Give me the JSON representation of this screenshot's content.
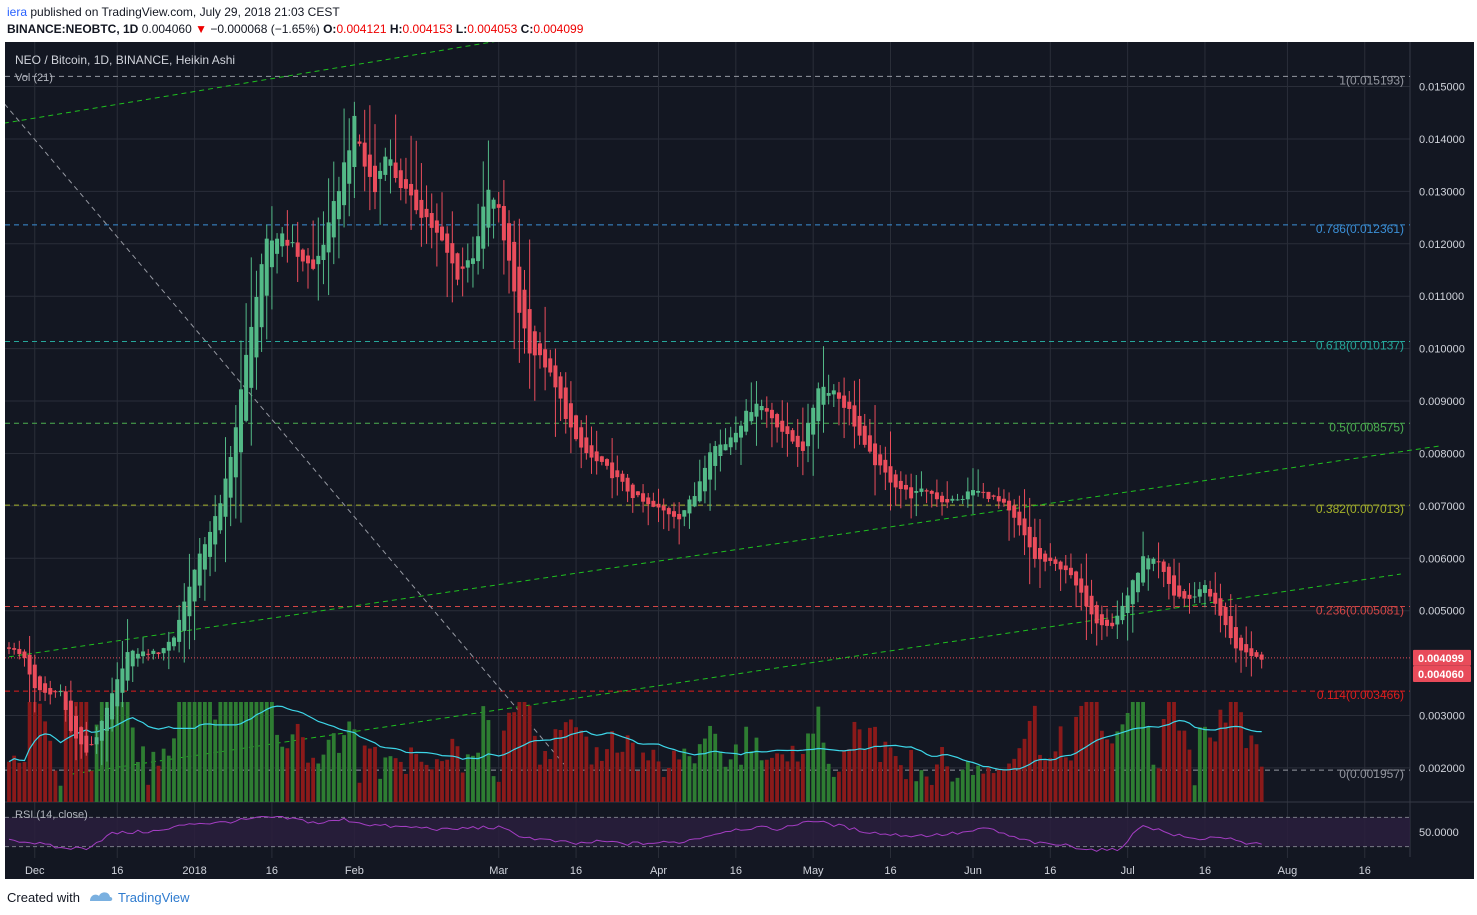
{
  "header": {
    "user": "iera",
    "published": " published on TradingView.com, July 29, 2018 21:03 CEST",
    "symbol": "BINANCE:NEOBTC, 1D",
    "price": "0.004060",
    "change_arrow": "▼",
    "change": "−0.000068 (−1.65%)",
    "o_label": "O:",
    "o_val": "0.004121",
    "h_label": "H:",
    "h_val": "0.004153",
    "l_label": "L:",
    "l_val": "0.004053",
    "c_label": "C:",
    "c_val": "0.004099"
  },
  "legend": {
    "title": "NEO / Bitcoin, 1D, BINANCE, Heikin Ashi",
    "vol": "Vol (21)",
    "rsi": "RSI (14, close)"
  },
  "colors": {
    "background": "#131722",
    "up": "#53b987",
    "down": "#eb4d5c",
    "vol_up": "#2e7d32",
    "vol_down": "#8b1a1a",
    "vol_ma": "#3dd6e8",
    "rsi": "#a33dc2",
    "trendline": "#1fbf1f"
  },
  "footer": {
    "created": "Created with",
    "brand": "TradingView"
  },
  "chart_data": {
    "type": "candlestick",
    "y_range": [
      0.00135,
      0.01585
    ],
    "y_ticks": [
      "0.015000",
      "0.014000",
      "0.013000",
      "0.012000",
      "0.011000",
      "0.010000",
      "0.009000",
      "0.008000",
      "0.007000",
      "0.006000",
      "0.005000",
      "0.003000",
      "0.002000"
    ],
    "x_ticks": [
      {
        "label": "Dec",
        "day": 5
      },
      {
        "label": "16",
        "day": 21
      },
      {
        "label": "2018",
        "day": 36
      },
      {
        "label": "16",
        "day": 51
      },
      {
        "label": "Feb",
        "day": 67
      },
      {
        "label": "Mar",
        "day": 95
      },
      {
        "label": "16",
        "day": 110
      },
      {
        "label": "Apr",
        "day": 126
      },
      {
        "label": "16",
        "day": 141
      },
      {
        "label": "May",
        "day": 156
      },
      {
        "label": "16",
        "day": 171
      },
      {
        "label": "Jun",
        "day": 187
      },
      {
        "label": "16",
        "day": 202
      },
      {
        "label": "Jul",
        "day": 217
      },
      {
        "label": "16",
        "day": 232
      },
      {
        "label": "Aug",
        "day": 248
      },
      {
        "label": "16",
        "day": 263
      }
    ],
    "fib_levels": [
      {
        "label": "1(0.015193)",
        "value": 0.015193,
        "color": "#9598a1"
      },
      {
        "label": "0.786(0.012361)",
        "value": 0.012361,
        "color": "#3b8fd6"
      },
      {
        "label": "0.618(0.010137)",
        "value": 0.010137,
        "color": "#26a69a"
      },
      {
        "label": "0.5(0.008575)",
        "value": 0.008575,
        "color": "#4caf50"
      },
      {
        "label": "0.382(0.007013)",
        "value": 0.007013,
        "color": "#a5b12a"
      },
      {
        "label": "0.236(0.005081)",
        "value": 0.005081,
        "color": "#d24646"
      },
      {
        "label": "0.114(0.003466)",
        "value": 0.003466,
        "color": "#e01e1e"
      },
      {
        "label": "0(0.001957)",
        "value": 0.001957,
        "color": "#9598a1"
      }
    ],
    "last_close": {
      "label": "0.004099",
      "value": 0.004099
    },
    "last_price": {
      "label": "0.004060",
      "value": 0.00406
    },
    "rsi_level": "50.0000",
    "close_anchors": [
      [
        0,
        0.0043
      ],
      [
        3,
        0.0041
      ],
      [
        5,
        0.0035
      ],
      [
        8,
        0.0034
      ],
      [
        10,
        0.0035
      ],
      [
        12,
        0.0027
      ],
      [
        15,
        0.0023
      ],
      [
        17,
        0.0026
      ],
      [
        20,
        0.0034
      ],
      [
        23,
        0.0042
      ],
      [
        26,
        0.0042
      ],
      [
        29,
        0.0042
      ],
      [
        32,
        0.0045
      ],
      [
        35,
        0.0055
      ],
      [
        38,
        0.0063
      ],
      [
        41,
        0.007
      ],
      [
        44,
        0.0085
      ],
      [
        47,
        0.0105
      ],
      [
        50,
        0.012
      ],
      [
        53,
        0.0122
      ],
      [
        56,
        0.0118
      ],
      [
        59,
        0.0115
      ],
      [
        62,
        0.0123
      ],
      [
        65,
        0.0135
      ],
      [
        67,
        0.0143
      ],
      [
        69,
        0.0135
      ],
      [
        71,
        0.013
      ],
      [
        73,
        0.0138
      ],
      [
        75,
        0.0133
      ],
      [
        78,
        0.0128
      ],
      [
        81,
        0.0125
      ],
      [
        84,
        0.012
      ],
      [
        87,
        0.0114
      ],
      [
        90,
        0.0118
      ],
      [
        93,
        0.013
      ],
      [
        95,
        0.0126
      ],
      [
        98,
        0.0111
      ],
      [
        101,
        0.01
      ],
      [
        104,
        0.0097
      ],
      [
        107,
        0.009
      ],
      [
        110,
        0.0082
      ],
      [
        113,
        0.0079
      ],
      [
        116,
        0.0077
      ],
      [
        119,
        0.0074
      ],
      [
        121,
        0.0072
      ],
      [
        124,
        0.007
      ],
      [
        127,
        0.0069
      ],
      [
        130,
        0.0068
      ],
      [
        133,
        0.0072
      ],
      [
        136,
        0.0081
      ],
      [
        139,
        0.0082
      ],
      [
        142,
        0.0086
      ],
      [
        145,
        0.009
      ],
      [
        148,
        0.0087
      ],
      [
        151,
        0.0083
      ],
      [
        154,
        0.0081
      ],
      [
        157,
        0.0093
      ],
      [
        160,
        0.0092
      ],
      [
        163,
        0.0088
      ],
      [
        166,
        0.0081
      ],
      [
        169,
        0.0077
      ],
      [
        172,
        0.0074
      ],
      [
        175,
        0.0072
      ],
      [
        178,
        0.0073
      ],
      [
        181,
        0.0071
      ],
      [
        184,
        0.0071
      ],
      [
        187,
        0.0073
      ],
      [
        190,
        0.0072
      ],
      [
        193,
        0.007
      ],
      [
        196,
        0.0066
      ],
      [
        199,
        0.006
      ],
      [
        202,
        0.0059
      ],
      [
        205,
        0.0058
      ],
      [
        208,
        0.0053
      ],
      [
        211,
        0.0048
      ],
      [
        214,
        0.0047
      ],
      [
        217,
        0.0053
      ],
      [
        220,
        0.006
      ],
      [
        223,
        0.0059
      ],
      [
        226,
        0.0053
      ],
      [
        229,
        0.0052
      ],
      [
        232,
        0.0055
      ],
      [
        235,
        0.0049
      ],
      [
        238,
        0.0043
      ],
      [
        241,
        0.0041
      ],
      [
        243,
        0.0041
      ]
    ],
    "rsi_anchors": [
      [
        0,
        40
      ],
      [
        5,
        35
      ],
      [
        10,
        28
      ],
      [
        15,
        28
      ],
      [
        20,
        48
      ],
      [
        25,
        50
      ],
      [
        30,
        52
      ],
      [
        35,
        62
      ],
      [
        40,
        62
      ],
      [
        45,
        66
      ],
      [
        50,
        70
      ],
      [
        55,
        68
      ],
      [
        60,
        62
      ],
      [
        65,
        67
      ],
      [
        70,
        60
      ],
      [
        75,
        57
      ],
      [
        80,
        56
      ],
      [
        85,
        53
      ],
      [
        90,
        56
      ],
      [
        95,
        56
      ],
      [
        100,
        43
      ],
      [
        105,
        38
      ],
      [
        110,
        34
      ],
      [
        115,
        37
      ],
      [
        120,
        34
      ],
      [
        125,
        35
      ],
      [
        130,
        36
      ],
      [
        135,
        44
      ],
      [
        140,
        53
      ],
      [
        145,
        56
      ],
      [
        150,
        54
      ],
      [
        155,
        66
      ],
      [
        160,
        60
      ],
      [
        165,
        52
      ],
      [
        170,
        47
      ],
      [
        175,
        45
      ],
      [
        180,
        46
      ],
      [
        185,
        49
      ],
      [
        190,
        55
      ],
      [
        195,
        42
      ],
      [
        200,
        34
      ],
      [
        205,
        32
      ],
      [
        210,
        26
      ],
      [
        215,
        25
      ],
      [
        220,
        60
      ],
      [
        225,
        48
      ],
      [
        230,
        40
      ],
      [
        235,
        44
      ],
      [
        240,
        33
      ],
      [
        243,
        35
      ]
    ],
    "trendlines": [
      {
        "color": "#1fbf1f",
        "from": [
          -1,
          0.0143
        ],
        "to": [
          112,
          0.01615
        ]
      },
      {
        "color": "#1fbf1f",
        "from": [
          0,
          0.00412
        ],
        "to": [
          278,
          0.00815
        ]
      },
      {
        "color": "#1fbf1f",
        "from": [
          12,
          0.00188
        ],
        "to": [
          270,
          0.0057
        ]
      },
      {
        "color": "#9598a1",
        "from": [
          -2,
          0.0148
        ],
        "to": [
          110,
          0.0018
        ]
      }
    ]
  }
}
